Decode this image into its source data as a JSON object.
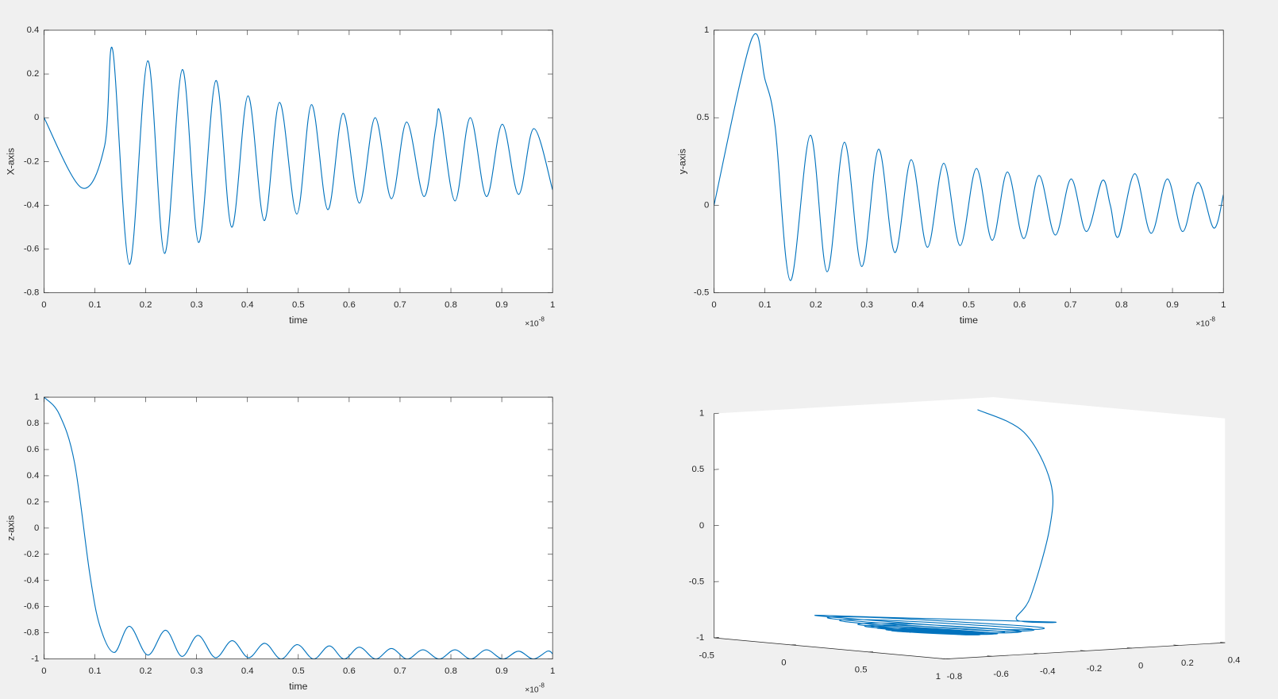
{
  "chart_data": [
    {
      "type": "line",
      "xlabel": "time",
      "ylabel": "X-axis",
      "x_multiplier": "×10",
      "x_exponent": "-8",
      "color": "#0072bd",
      "xlim": [
        0,
        1
      ],
      "xticks": [
        0,
        0.1,
        0.2,
        0.3,
        0.4,
        0.5,
        0.6,
        0.7,
        0.8,
        0.9,
        1
      ],
      "ylim": [
        -0.8,
        0.4
      ],
      "yticks": [
        -0.8,
        -0.6,
        -0.4,
        -0.2,
        0,
        0.2,
        0.4
      ],
      "x": [
        0,
        0.074,
        0.119,
        0.135,
        0.168,
        0.204,
        0.237,
        0.272,
        0.304,
        0.338,
        0.369,
        0.401,
        0.433,
        0.463,
        0.497,
        0.526,
        0.558,
        0.588,
        0.62,
        0.651,
        0.683,
        0.713,
        0.747,
        0.77,
        0.779,
        0.808,
        0.838,
        0.87,
        0.901,
        0.933,
        0.963,
        1
      ],
      "values": [
        0,
        -0.32,
        -0.13,
        0.31,
        -0.67,
        0.26,
        -0.62,
        0.22,
        -0.57,
        0.17,
        -0.5,
        0.1,
        -0.47,
        0.07,
        -0.44,
        0.06,
        -0.42,
        0.02,
        -0.39,
        0,
        -0.37,
        -0.02,
        -0.36,
        -0.05,
        0.02,
        -0.38,
        0,
        -0.36,
        -0.03,
        -0.35,
        -0.05,
        -0.33
      ]
    },
    {
      "type": "line",
      "xlabel": "time",
      "ylabel": "y-axis",
      "x_multiplier": "×10",
      "x_exponent": "-8",
      "color": "#0072bd",
      "xlim": [
        0,
        1
      ],
      "xticks": [
        0,
        0.1,
        0.2,
        0.3,
        0.4,
        0.5,
        0.6,
        0.7,
        0.8,
        0.9,
        1
      ],
      "ylim": [
        -0.5,
        1
      ],
      "yticks": [
        -0.5,
        0,
        0.5,
        1
      ],
      "x": [
        0,
        0.074,
        0.1,
        0.12,
        0.15,
        0.189,
        0.222,
        0.256,
        0.29,
        0.323,
        0.355,
        0.387,
        0.419,
        0.451,
        0.483,
        0.515,
        0.546,
        0.576,
        0.608,
        0.638,
        0.67,
        0.701,
        0.731,
        0.762,
        0.778,
        0.794,
        0.826,
        0.858,
        0.89,
        0.92,
        0.95,
        0.981,
        1
      ],
      "values": [
        0,
        0.95,
        0.72,
        0.45,
        -0.43,
        0.4,
        -0.38,
        0.36,
        -0.35,
        0.32,
        -0.27,
        0.26,
        -0.24,
        0.24,
        -0.23,
        0.21,
        -0.2,
        0.19,
        -0.19,
        0.17,
        -0.17,
        0.15,
        -0.15,
        0.14,
        0,
        -0.18,
        0.18,
        -0.16,
        0.15,
        -0.15,
        0.13,
        -0.13,
        0.06
      ]
    },
    {
      "type": "line",
      "xlabel": "time",
      "ylabel": "z-axis",
      "x_multiplier": "×10",
      "x_exponent": "-8",
      "color": "#0072bd",
      "xlim": [
        0,
        1
      ],
      "xticks": [
        0,
        0.1,
        0.2,
        0.3,
        0.4,
        0.5,
        0.6,
        0.7,
        0.8,
        0.9,
        1
      ],
      "ylim": [
        -1,
        1
      ],
      "yticks": [
        -1,
        -0.8,
        -0.6,
        -0.4,
        -0.2,
        0,
        0.2,
        0.4,
        0.6,
        0.8,
        1
      ],
      "x": [
        0,
        0.03,
        0.06,
        0.09,
        0.11,
        0.138,
        0.168,
        0.204,
        0.239,
        0.271,
        0.303,
        0.337,
        0.37,
        0.402,
        0.434,
        0.466,
        0.498,
        0.53,
        0.561,
        0.59,
        0.62,
        0.652,
        0.683,
        0.714,
        0.745,
        0.777,
        0.808,
        0.839,
        0.87,
        0.902,
        0.933,
        0.962,
        0.99,
        1
      ],
      "values": [
        1,
        0.87,
        0.5,
        -0.35,
        -0.75,
        -0.95,
        -0.75,
        -0.97,
        -0.78,
        -0.98,
        -0.82,
        -0.99,
        -0.86,
        -0.99,
        -0.88,
        -1,
        -0.89,
        -1,
        -0.9,
        -1,
        -0.91,
        -1,
        -0.92,
        -1,
        -0.93,
        -1,
        -0.93,
        -1,
        -0.93,
        -1,
        -0.94,
        -1,
        -0.94,
        -0.96
      ]
    },
    {
      "type": "line3d",
      "color": "#0072bd",
      "xlim": [
        -0.5,
        1
      ],
      "xticks": [
        -0.5,
        0,
        0.5,
        1
      ],
      "ylim": [
        -0.8,
        0.4
      ],
      "yticks": [
        -0.8,
        -0.6,
        -0.4,
        -0.2,
        0,
        0.2,
        0.4
      ],
      "zlim": [
        -1,
        1
      ],
      "zticks": [
        -1,
        -0.5,
        0,
        0.5,
        1
      ],
      "x": [
        0,
        0.45,
        0.88,
        0.95,
        0.72,
        0.45,
        0,
        -0.43,
        0,
        0.4,
        0,
        -0.38,
        0,
        0.36,
        0,
        -0.35,
        0,
        0.32,
        0,
        -0.27,
        0,
        0.26,
        0,
        -0.24,
        0,
        0.24,
        0,
        -0.23,
        0,
        0.21,
        0,
        -0.2,
        0,
        0.19,
        0,
        -0.19,
        0,
        0.17,
        0,
        -0.17,
        0,
        0.15,
        0,
        -0.15,
        0,
        0.14,
        0,
        -0.18,
        0,
        0.18,
        0,
        -0.16,
        0,
        0.15,
        0,
        -0.15,
        0,
        0.13,
        0,
        -0.13,
        0.06
      ],
      "y": [
        0,
        -0.1,
        -0.27,
        -0.32,
        -0.25,
        -0.13,
        0.31,
        -0.18,
        -0.67,
        -0.2,
        0.26,
        -0.18,
        -0.62,
        -0.2,
        0.22,
        -0.17,
        -0.57,
        -0.2,
        0.17,
        -0.16,
        -0.5,
        -0.2,
        0.1,
        -0.18,
        -0.47,
        -0.2,
        0.07,
        -0.18,
        -0.44,
        -0.19,
        0.06,
        -0.18,
        -0.42,
        -0.2,
        0.02,
        -0.18,
        -0.39,
        -0.19,
        0,
        -0.18,
        -0.37,
        -0.19,
        -0.02,
        -0.18,
        -0.36,
        -0.18,
        0.02,
        -0.18,
        -0.38,
        -0.19,
        0,
        -0.18,
        -0.36,
        -0.2,
        -0.03,
        -0.19,
        -0.35,
        -0.2,
        -0.05,
        -0.19,
        -0.33
      ],
      "z": [
        1,
        0.87,
        0.5,
        0.1,
        -0.55,
        -0.8,
        -0.93,
        -0.88,
        -0.76,
        -0.88,
        -0.97,
        -0.88,
        -0.79,
        -0.9,
        -0.98,
        -0.9,
        -0.82,
        -0.92,
        -0.99,
        -0.92,
        -0.86,
        -0.93,
        -0.99,
        -0.93,
        -0.88,
        -0.94,
        -1,
        -0.94,
        -0.89,
        -0.95,
        -1,
        -0.95,
        -0.9,
        -0.95,
        -1,
        -0.95,
        -0.91,
        -0.96,
        -1,
        -0.96,
        -0.92,
        -0.96,
        -1,
        -0.96,
        -0.93,
        -0.96,
        -1,
        -0.96,
        -0.92,
        -0.96,
        -1,
        -0.96,
        -0.93,
        -0.96,
        -1,
        -0.96,
        -0.93,
        -0.96,
        -1,
        -0.96,
        -0.94
      ]
    }
  ]
}
